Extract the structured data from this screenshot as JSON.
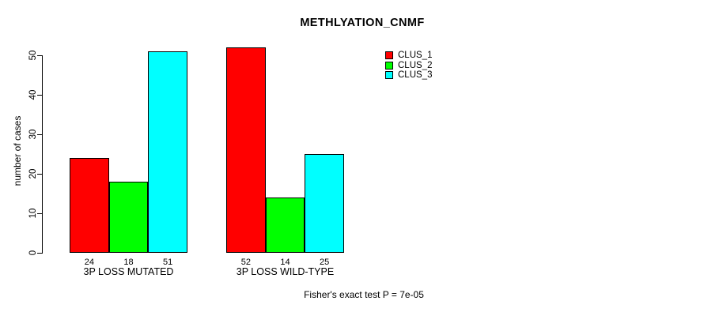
{
  "chart_data": {
    "type": "bar",
    "title": "METHLYATION_CNMF",
    "ylabel": "number of cases",
    "xlabel": "",
    "categories": [
      "3P LOSS MUTATED",
      "3P LOSS WILD-TYPE"
    ],
    "series": [
      {
        "name": "CLUS_1",
        "color": "#ff0000",
        "values": [
          24,
          52
        ]
      },
      {
        "name": "CLUS_2",
        "color": "#00ff00",
        "values": [
          18,
          14
        ]
      },
      {
        "name": "CLUS_3",
        "color": "#00ffff",
        "values": [
          51,
          25
        ]
      }
    ],
    "yticks": [
      0,
      10,
      20,
      30,
      40,
      50
    ],
    "ylim": [
      0,
      52
    ],
    "grid": false,
    "legend_position": "top-right",
    "bar_value_labels_shown": true,
    "annotation": "Fisher's exact test P = 7e-05"
  },
  "colors": {
    "background": "#ffffff",
    "axis": "#000000",
    "text": "#000000",
    "bar_border": "#000000"
  }
}
